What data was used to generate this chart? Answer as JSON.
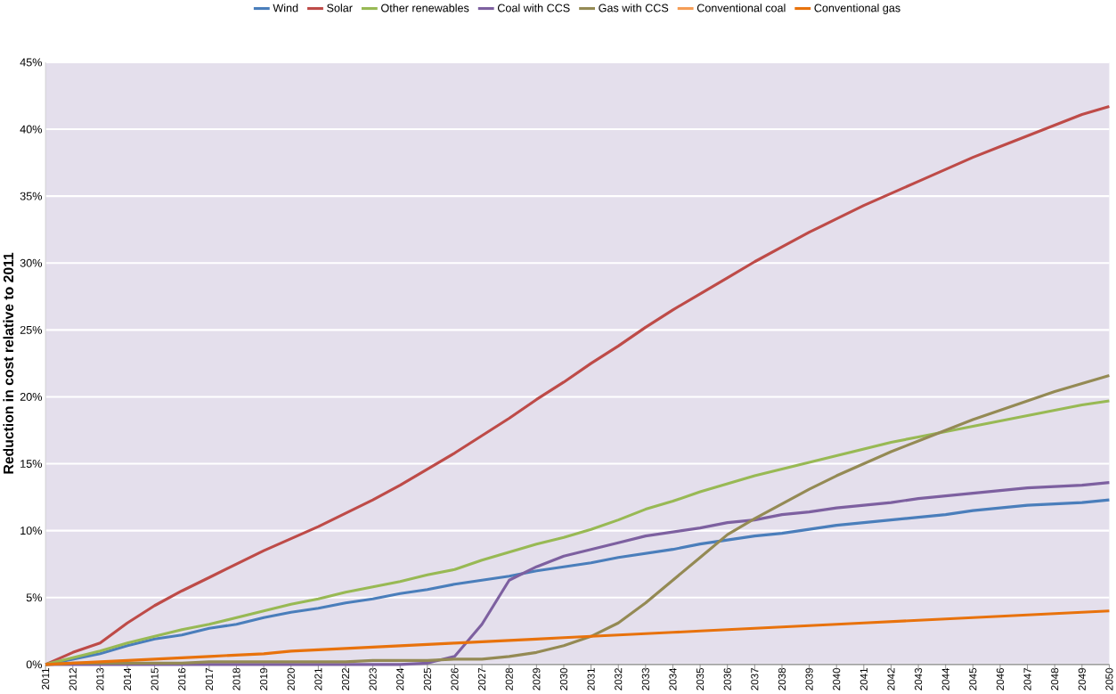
{
  "chart_data": {
    "type": "line",
    "ylabel": "**Reduction in cost relative to 2011**",
    "categories": [
      "2011",
      "2012",
      "2013",
      "2014",
      "2015",
      "2016",
      "2017",
      "2018",
      "2019",
      "2020",
      "2021",
      "2022",
      "2023",
      "2024",
      "2025",
      "2026",
      "2027",
      "2028",
      "2029",
      "2030",
      "2031",
      "2032",
      "2033",
      "2034",
      "2035",
      "2036",
      "2037",
      "2038",
      "2039",
      "2040",
      "2041",
      "2042",
      "2043",
      "2044",
      "2045",
      "2046",
      "2047",
      "2048",
      "2049",
      "2050"
    ],
    "series": [
      {
        "name": "Wind",
        "color": "#4a7ebb",
        "values": [
          0,
          0.4,
          0.8,
          1.4,
          1.9,
          2.2,
          2.7,
          3.0,
          3.5,
          3.9,
          4.2,
          4.6,
          4.9,
          5.3,
          5.6,
          6.0,
          6.3,
          6.6,
          7.0,
          7.3,
          7.6,
          8.0,
          8.3,
          8.6,
          9.0,
          9.3,
          9.6,
          9.8,
          10.1,
          10.4,
          10.6,
          10.8,
          11.0,
          11.2,
          11.5,
          11.7,
          11.9,
          12.0,
          12.1,
          12.3
        ]
      },
      {
        "name": "Solar",
        "color": "#be4b48",
        "values": [
          0,
          0.9,
          1.6,
          3.1,
          4.4,
          5.5,
          6.5,
          7.5,
          8.5,
          9.4,
          10.3,
          11.3,
          12.3,
          13.4,
          14.6,
          15.8,
          17.1,
          18.4,
          19.8,
          21.1,
          22.5,
          23.8,
          25.2,
          26.5,
          27.7,
          28.9,
          30.1,
          31.2,
          32.3,
          33.3,
          34.3,
          35.2,
          36.1,
          37.0,
          37.9,
          38.7,
          39.5,
          40.3,
          41.1,
          41.7
        ]
      },
      {
        "name": "Other renewables",
        "color": "#98b954",
        "values": [
          0,
          0.5,
          1.0,
          1.6,
          2.1,
          2.6,
          3.0,
          3.5,
          4.0,
          4.5,
          4.9,
          5.4,
          5.8,
          6.2,
          6.7,
          7.1,
          7.8,
          8.4,
          9.0,
          9.5,
          10.1,
          10.8,
          11.6,
          12.2,
          12.9,
          13.5,
          14.1,
          14.6,
          15.1,
          15.6,
          16.1,
          16.6,
          17.0,
          17.4,
          17.8,
          18.2,
          18.6,
          19.0,
          19.4,
          19.7
        ]
      },
      {
        "name": "Coal with CCS",
        "color": "#7d60a0",
        "values": [
          0,
          0,
          0,
          0,
          0,
          0,
          0,
          0,
          0,
          0,
          0,
          0,
          0,
          0,
          0.1,
          0.6,
          3.0,
          6.3,
          7.3,
          8.1,
          8.6,
          9.1,
          9.6,
          9.9,
          10.2,
          10.6,
          10.8,
          11.2,
          11.4,
          11.7,
          11.9,
          12.1,
          12.4,
          12.6,
          12.8,
          13.0,
          13.2,
          13.3,
          13.4,
          13.6
        ]
      },
      {
        "name": "Gas with CCS",
        "color": "#948a54",
        "values": [
          0,
          0.1,
          0.1,
          0.1,
          0.1,
          0.1,
          0.2,
          0.2,
          0.2,
          0.2,
          0.2,
          0.2,
          0.3,
          0.3,
          0.3,
          0.4,
          0.4,
          0.6,
          0.9,
          1.4,
          2.1,
          3.1,
          4.6,
          6.3,
          8.0,
          9.7,
          10.9,
          12.0,
          13.1,
          14.1,
          15.0,
          15.9,
          16.7,
          17.5,
          18.3,
          19.0,
          19.7,
          20.4,
          21.0,
          21.6
        ]
      },
      {
        "name": "Conventional coal",
        "color": "#f59d56",
        "values": [
          null,
          null,
          null,
          null,
          null,
          null,
          null,
          null,
          null,
          null,
          null,
          null,
          null,
          null,
          null,
          null,
          null,
          null,
          null,
          null,
          null,
          null,
          null,
          null,
          null,
          null,
          null,
          null,
          null,
          null,
          null,
          null,
          null,
          null,
          null,
          null,
          null,
          null,
          null,
          null
        ]
      },
      {
        "name": "Conventional gas",
        "color": "#e8720c",
        "values": [
          0,
          0.1,
          0.2,
          0.3,
          0.4,
          0.5,
          0.6,
          0.7,
          0.8,
          1.0,
          1.1,
          1.2,
          1.3,
          1.4,
          1.5,
          1.6,
          1.7,
          1.8,
          1.9,
          2.0,
          2.1,
          2.2,
          2.3,
          2.4,
          2.5,
          2.6,
          2.7,
          2.8,
          2.9,
          3.0,
          3.1,
          3.2,
          3.3,
          3.4,
          3.5,
          3.6,
          3.7,
          3.8,
          3.9,
          4.0
        ]
      }
    ],
    "ylim": [
      0,
      45
    ],
    "yticks": [
      {
        "value": 0,
        "label": "0%"
      },
      {
        "value": 5,
        "label": "5%"
      },
      {
        "value": 10,
        "label": "10%"
      },
      {
        "value": 15,
        "label": "15%"
      },
      {
        "value": 20,
        "label": "20%"
      },
      {
        "value": 25,
        "label": "25%"
      },
      {
        "value": 30,
        "label": "30%"
      },
      {
        "value": 35,
        "label": "35%"
      },
      {
        "value": 40,
        "label": "40%"
      },
      {
        "value": 45,
        "label": "45%"
      }
    ],
    "grid": "y",
    "legend": "top",
    "marker": "none",
    "line_style": "solid"
  }
}
